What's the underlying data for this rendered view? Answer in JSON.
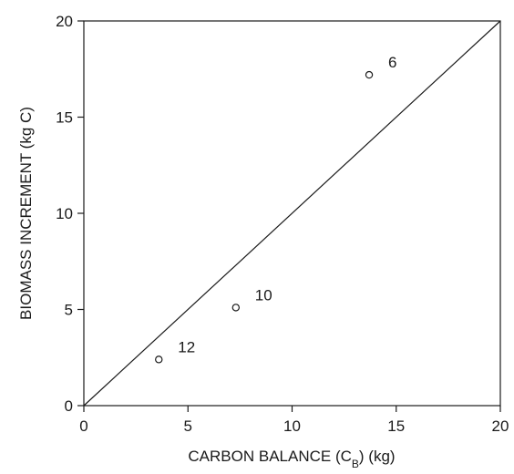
{
  "chart_data": {
    "type": "scatter",
    "title": "",
    "xlabel_main": "CARBON BALANCE (C",
    "xlabel_sub": "B",
    "xlabel_end": ") (kg)",
    "ylabel": "BIOMASS INCREMENT (kg C)",
    "xlim": [
      0,
      20
    ],
    "ylim": [
      0,
      20
    ],
    "x_ticks": [
      0,
      5,
      10,
      15,
      20
    ],
    "y_ticks": [
      0,
      5,
      10,
      15,
      20
    ],
    "grid": false,
    "reference_line": {
      "type": "1:1",
      "from": [
        0,
        0
      ],
      "to": [
        20,
        20
      ]
    },
    "points": [
      {
        "x": 3.6,
        "y": 2.4,
        "label": "12"
      },
      {
        "x": 7.3,
        "y": 5.1,
        "label": "10"
      },
      {
        "x": 13.7,
        "y": 17.2,
        "label": "6"
      }
    ]
  }
}
